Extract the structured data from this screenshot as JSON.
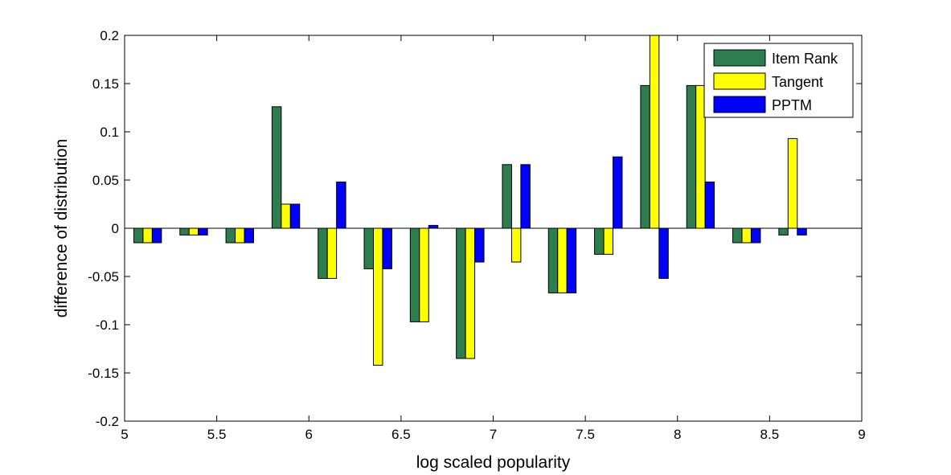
{
  "chart_data": {
    "type": "bar",
    "title": "",
    "xlabel": "log scaled popularity",
    "ylabel": "difference of distribution",
    "xlim": [
      5,
      9
    ],
    "ylim": [
      -0.2,
      0.2
    ],
    "xticks": [
      "5",
      "5.5",
      "6",
      "6.5",
      "7",
      "7.5",
      "8",
      "8.5",
      "9"
    ],
    "yticks": [
      "-0.2",
      "-0.15",
      "-0.1",
      "-0.05",
      "0",
      "0.05",
      "0.1",
      "0.15",
      "0.2"
    ],
    "grid": false,
    "legend_position": "top-right",
    "x": [
      5.125,
      5.375,
      5.625,
      5.875,
      6.125,
      6.375,
      6.625,
      6.875,
      7.125,
      7.375,
      7.625,
      7.875,
      8.125,
      8.375,
      8.625
    ],
    "series": [
      {
        "name": "Item Rank",
        "color": "#2e7d4f",
        "values": [
          -0.015,
          -0.007,
          -0.015,
          0.126,
          -0.052,
          -0.042,
          -0.097,
          -0.135,
          0.066,
          -0.067,
          -0.027,
          0.148,
          0.148,
          -0.015,
          -0.007
        ]
      },
      {
        "name": "Tangent",
        "color": "#ffff00",
        "values": [
          -0.015,
          -0.007,
          -0.015,
          0.025,
          -0.052,
          -0.142,
          -0.097,
          -0.135,
          -0.035,
          -0.067,
          -0.027,
          0.2,
          0.148,
          -0.015,
          0.093
        ]
      },
      {
        "name": "PPTM",
        "color": "#0000ff",
        "values": [
          -0.015,
          -0.007,
          -0.015,
          0.025,
          0.048,
          -0.042,
          0.003,
          -0.035,
          0.066,
          -0.067,
          0.074,
          -0.052,
          0.048,
          -0.015,
          -0.007
        ]
      }
    ]
  }
}
